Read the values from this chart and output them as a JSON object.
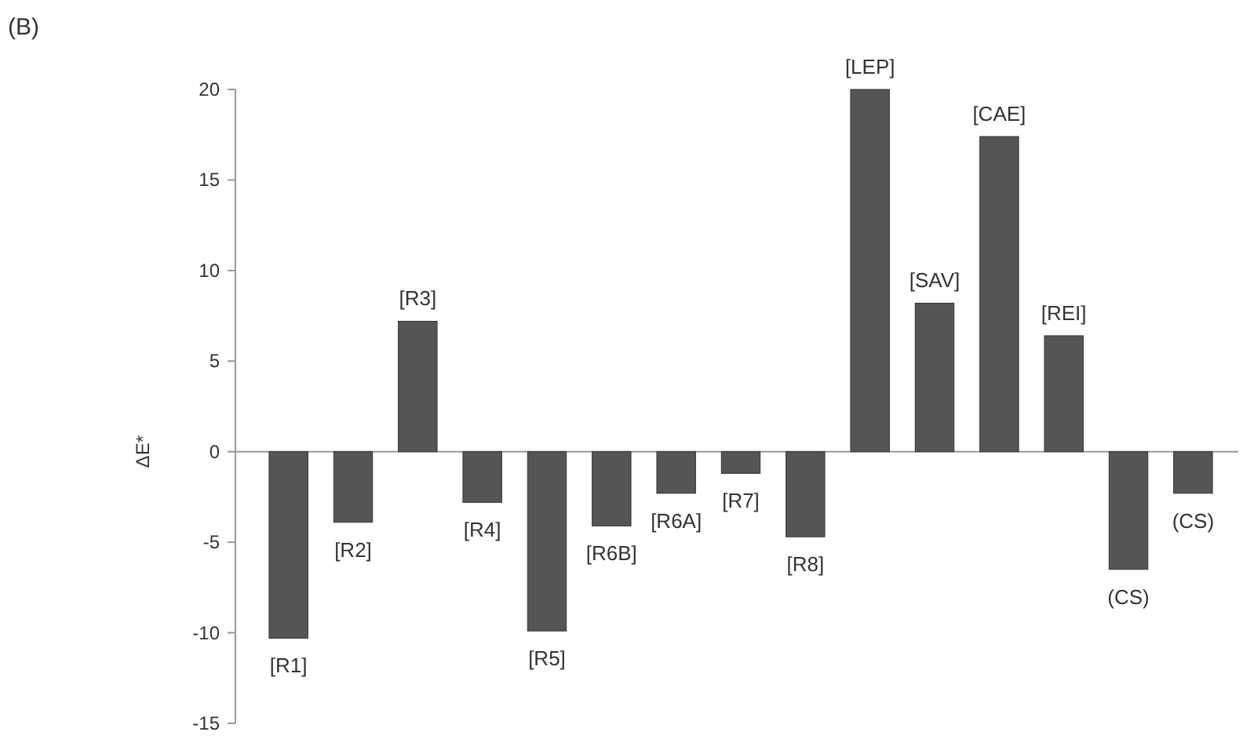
{
  "chart_data": {
    "type": "bar",
    "title": "(B)",
    "ylabel": "ΔE*",
    "categories": [
      "[R1]",
      "[R2]",
      "[R3]",
      "[R4]",
      "[R5]",
      "[R6B]",
      "[R6A]",
      "[R7]",
      "[R8]",
      "[LEP]",
      "[SAV]",
      "[CAE]",
      "[REI]",
      "(CS)",
      "(CS)"
    ],
    "values": [
      -10.3,
      -3.9,
      7.2,
      -2.8,
      -9.9,
      -4.1,
      -2.3,
      -1.2,
      -4.7,
      20,
      8.2,
      17.4,
      6.4,
      -6.5,
      -2.3
    ],
    "color": "#555555",
    "ylim": [
      -15,
      20
    ],
    "yticks": [
      -15,
      -10,
      -5,
      0,
      5,
      10,
      15,
      20
    ]
  }
}
